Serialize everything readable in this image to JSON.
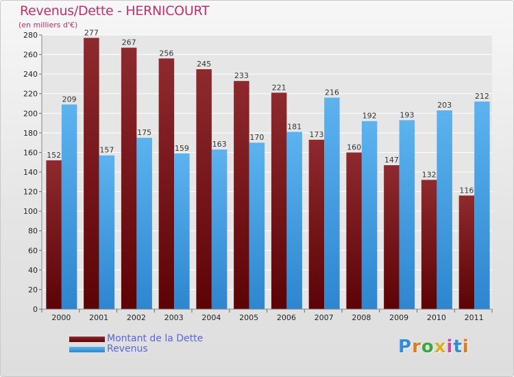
{
  "chart_data": {
    "type": "bar",
    "title": "Revenus/Dette - HERNICOURT",
    "subtitle": "(en milliers d'€)",
    "categories": [
      "2000",
      "2001",
      "2002",
      "2003",
      "2004",
      "2005",
      "2006",
      "2007",
      "2008",
      "2009",
      "2010",
      "2011"
    ],
    "series": [
      {
        "name": "Montant de la Dette",
        "color": "#7a1418",
        "values": [
          152,
          277,
          267,
          256,
          245,
          233,
          221,
          173,
          160,
          147,
          132,
          116
        ]
      },
      {
        "name": "Revenus",
        "color": "#3f9fe6",
        "values": [
          209,
          157,
          175,
          159,
          163,
          170,
          181,
          216,
          192,
          193,
          203,
          212
        ]
      }
    ],
    "ylim": [
      0,
      280
    ],
    "yticks": [
      0,
      20,
      40,
      60,
      80,
      100,
      120,
      140,
      160,
      180,
      200,
      220,
      240,
      260,
      280
    ],
    "grid": true,
    "legend": "bottom-left"
  },
  "brand": {
    "logo_letters": [
      "P",
      "r",
      "o",
      "x",
      "i",
      "t",
      "i"
    ],
    "logo_colors": [
      "#2f8fd6",
      "#e07a1f",
      "#3aa83a",
      "#d8b020",
      "#c84aa0",
      "#2f8fd6",
      "#e07a1f"
    ]
  }
}
